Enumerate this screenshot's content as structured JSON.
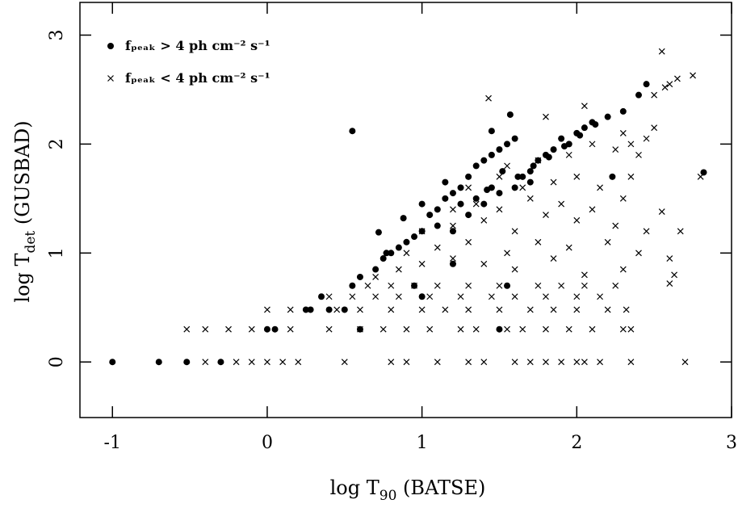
{
  "chart_data": {
    "type": "scatter",
    "x_label": {
      "text": "log T",
      "sub": "90",
      "after": " (BATSE)"
    },
    "y_label": {
      "text": "log T",
      "sub": "det",
      "after": " (GUSBAD)"
    },
    "xlim": [
      -1.21,
      3
    ],
    "ylim": [
      -0.51,
      3.3
    ],
    "xticks": [
      -1,
      0,
      1,
      2,
      3
    ],
    "yticks": [
      0,
      1,
      2,
      3
    ],
    "legend": "upper left",
    "series": [
      {
        "name": "fₚₑₐₖ > 4 ph cm⁻² s⁻¹",
        "color": "#000000",
        "marker": "circle",
        "x": [
          -1,
          -0.7,
          -0.52,
          -0.3,
          0.0,
          0.05,
          0.25,
          0.28,
          0.35,
          0.4,
          0.55,
          0.6,
          0.7,
          0.72,
          0.75,
          0.8,
          0.85,
          0.9,
          0.95,
          1.0,
          1.05,
          1.1,
          1.15,
          1.2,
          1.25,
          1.3,
          1.35,
          1.4,
          1.45,
          1.5,
          1.55,
          1.6,
          1.65,
          1.7,
          1.75,
          1.8,
          1.85,
          1.9,
          1.95,
          2.0,
          2.05,
          2.1,
          2.2,
          2.3,
          2.4,
          2.45,
          2.82,
          0.55,
          1.57,
          1.45,
          2.23,
          0.95,
          1.2,
          1.3,
          1.4,
          1.1,
          1.6,
          1.5,
          1.7,
          0.6,
          1.5,
          1.0,
          1.2,
          0.5,
          1.55,
          1.0,
          1.15,
          1.25,
          0.88,
          0.77,
          1.35,
          1.45,
          1.62,
          1.72,
          1.82,
          1.92,
          2.02,
          2.12,
          1.52,
          1.42
        ],
        "y": [
          0,
          0,
          0,
          0,
          0.3,
          0.3,
          0.48,
          0.48,
          0.6,
          0.48,
          0.7,
          0.78,
          0.85,
          1.19,
          0.95,
          1.0,
          1.05,
          1.1,
          1.15,
          1.2,
          1.35,
          1.4,
          1.5,
          1.55,
          1.6,
          1.7,
          1.8,
          1.85,
          1.9,
          1.95,
          2.0,
          2.05,
          1.7,
          1.75,
          1.85,
          1.9,
          1.95,
          2.05,
          2.0,
          2.1,
          2.15,
          2.2,
          2.25,
          2.3,
          2.45,
          2.55,
          1.74,
          2.12,
          2.27,
          2.12,
          1.7,
          0.7,
          1.2,
          1.35,
          1.45,
          1.25,
          1.6,
          1.55,
          1.65,
          0.3,
          0.3,
          0.6,
          0.9,
          0.48,
          0.7,
          1.45,
          1.65,
          1.45,
          1.32,
          1.0,
          1.5,
          1.6,
          1.7,
          1.8,
          1.88,
          1.98,
          2.08,
          2.18,
          1.75,
          1.58
        ]
      },
      {
        "name": "fₚₑₐₖ < 4 ph cm⁻² s⁻¹",
        "color": "#000000",
        "marker": "x",
        "x": [
          -0.4,
          -0.2,
          -0.1,
          0.0,
          0.1,
          0.2,
          0.5,
          0.8,
          0.9,
          1.1,
          1.3,
          1.4,
          1.6,
          1.7,
          1.8,
          1.9,
          2.0,
          2.05,
          2.15,
          2.35,
          2.7,
          -0.52,
          -0.4,
          -0.25,
          -0.1,
          0.15,
          0.4,
          0.6,
          0.75,
          0.9,
          1.05,
          1.25,
          1.35,
          1.55,
          1.65,
          1.8,
          1.95,
          2.1,
          2.3,
          2.35,
          0.0,
          0.15,
          0.45,
          0.6,
          0.8,
          1.0,
          1.15,
          1.3,
          1.5,
          1.7,
          1.85,
          2.0,
          2.2,
          2.32,
          0.4,
          0.55,
          0.7,
          0.85,
          1.05,
          1.25,
          1.45,
          1.6,
          1.8,
          2.0,
          2.15,
          0.65,
          0.8,
          0.95,
          1.1,
          1.3,
          1.5,
          1.75,
          1.9,
          2.05,
          2.25,
          0.7,
          0.85,
          1.0,
          1.2,
          1.4,
          1.6,
          1.85,
          2.05,
          2.3,
          0.9,
          1.1,
          1.3,
          1.55,
          1.75,
          1.95,
          2.2,
          2.4,
          1.0,
          1.2,
          1.4,
          1.6,
          1.8,
          2.0,
          2.25,
          2.45,
          2.6,
          1.2,
          1.35,
          1.5,
          1.7,
          1.9,
          2.1,
          2.3,
          2.55,
          2.6,
          1.3,
          1.5,
          1.65,
          1.85,
          2.0,
          2.15,
          2.35,
          2.4,
          1.55,
          1.75,
          1.95,
          2.1,
          2.25,
          2.45,
          2.5,
          1.43,
          1.8,
          2.05,
          2.3,
          2.55,
          2.6,
          2.65,
          2.8,
          2.75,
          2.35,
          2.5,
          2.57,
          2.63,
          2.67
        ],
        "y": [
          0,
          0,
          0,
          0,
          0,
          0,
          0,
          0,
          0,
          0,
          0,
          0,
          0,
          0,
          0,
          0,
          0,
          0,
          0,
          0,
          0,
          0.3,
          0.3,
          0.3,
          0.3,
          0.3,
          0.3,
          0.3,
          0.3,
          0.3,
          0.3,
          0.3,
          0.3,
          0.3,
          0.3,
          0.3,
          0.3,
          0.3,
          0.3,
          0.3,
          0.48,
          0.48,
          0.48,
          0.48,
          0.48,
          0.48,
          0.48,
          0.48,
          0.48,
          0.48,
          0.48,
          0.48,
          0.48,
          0.48,
          0.6,
          0.6,
          0.6,
          0.6,
          0.6,
          0.6,
          0.6,
          0.6,
          0.6,
          0.6,
          0.6,
          0.7,
          0.7,
          0.7,
          0.7,
          0.7,
          0.7,
          0.7,
          0.7,
          0.7,
          0.7,
          0.78,
          0.85,
          0.9,
          0.95,
          0.9,
          0.85,
          0.95,
          0.8,
          0.85,
          1.0,
          1.05,
          1.1,
          1.0,
          1.1,
          1.05,
          1.1,
          1.0,
          1.2,
          1.25,
          1.3,
          1.2,
          1.35,
          1.3,
          1.25,
          1.2,
          0.72,
          1.4,
          1.45,
          1.4,
          1.5,
          1.45,
          1.4,
          1.5,
          1.38,
          0.95,
          1.6,
          1.7,
          1.6,
          1.65,
          1.7,
          1.6,
          1.7,
          1.9,
          1.8,
          1.85,
          1.9,
          2.0,
          1.95,
          2.05,
          2.15,
          2.42,
          2.25,
          2.35,
          2.1,
          2.85,
          2.55,
          2.6,
          1.7,
          2.63,
          2.0,
          2.45,
          2.52,
          0.8,
          1.2
        ]
      }
    ]
  }
}
